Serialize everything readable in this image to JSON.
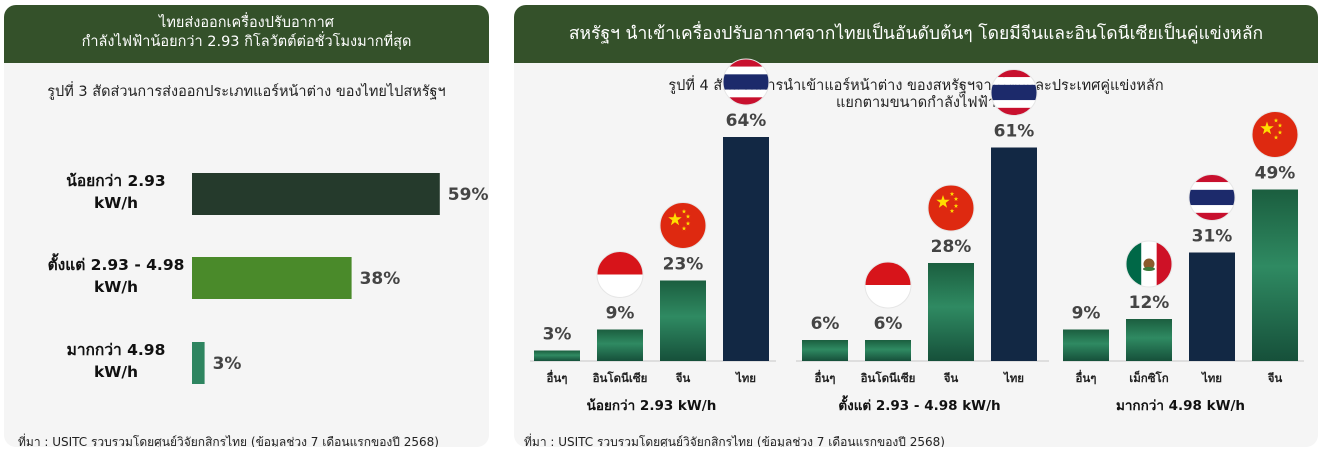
{
  "left": {
    "banner_line1": "ไทยส่งออกเครื่องปรับอากาศ",
    "banner_line2": "กำลังไฟฟ้าน้อยกว่า 2.93 กิโลวัตต์ต่อชั่วโมงมากที่สุด",
    "figure_title": "รูปที่ 3 สัดส่วนการส่งออกประเภทแอร์หน้าต่าง ของไทยไปสหรัฐฯ",
    "source": "ที่มา : USITC รวบรวมโดยศูนย์วิจัยกสิกรไทย (ข้อมูลช่วง 7 เดือนแรกของปี 2568)"
  },
  "right": {
    "banner": "สหรัฐฯ นำเข้าเครื่องปรับอากาศจากไทยเป็นอันดับต้นๆ โดยมีจีนและอินโดนีเซียเป็นคู่แข่งหลัก",
    "figure_title_line1": "รูปที่ 4 สัดส่วนการนำเข้าแอร์หน้าต่าง ของสหรัฐฯจากไทยและประเทศคู่แข่งหลัก",
    "figure_title_line2": "แยกตามขนาดกำลังไฟฟ้า",
    "source": "ที่มา : USITC รวบรวมโดยศูนย์วิจัยกสิกรไทย (ข้อมูลช่วง 7 เดือนแรกของปี 2568)"
  },
  "chart_data": [
    {
      "type": "bar",
      "orientation": "horizontal",
      "title": "รูปที่ 3 สัดส่วนการส่งออกประเภทแอร์หน้าต่าง ของไทยไปสหรัฐฯ",
      "categories": [
        [
          "น้อยกว่า 2.93",
          "kW/h"
        ],
        [
          "ตั้งแต่ 2.93 - 4.98",
          "kW/h"
        ],
        [
          "มากกว่า 4.98",
          "kW/h"
        ]
      ],
      "values": [
        59,
        38,
        3
      ],
      "value_labels": [
        "59%",
        "38%",
        "3%"
      ],
      "colors": [
        "#253a2c",
        "#4a8a2a",
        "#2e8560"
      ],
      "xlim": [
        0,
        100
      ],
      "grid": false
    },
    {
      "type": "bar",
      "title": "รูปที่ 4 สัดส่วนการนำเข้าแอร์หน้าต่าง ของสหรัฐฯจากไทยและประเทศคู่แข่งหลัก แยกตามขนาดกำลังไฟฟ้า",
      "ylim": [
        0,
        70
      ],
      "grid": false,
      "groups": [
        {
          "name": "น้อยกว่า 2.93 kW/h",
          "categories": [
            "อื่นๆ",
            "อินโดนีเซีย",
            "จีน",
            "ไทย"
          ],
          "values": [
            3,
            9,
            23,
            64
          ],
          "value_labels": [
            "3%",
            "9%",
            "23%",
            "64%"
          ],
          "flags": [
            "",
            "indonesia-flag-icon",
            "china-flag-icon",
            "thailand-flag-icon"
          ]
        },
        {
          "name": "ตั้งแต่ 2.93 - 4.98 kW/h",
          "categories": [
            "อื่นๆ",
            "อินโดนีเซีย",
            "จีน",
            "ไทย"
          ],
          "values": [
            6,
            6,
            28,
            61
          ],
          "value_labels": [
            "6%",
            "6%",
            "28%",
            "61%"
          ],
          "flags": [
            "",
            "indonesia-flag-icon",
            "china-flag-icon",
            "thailand-flag-icon"
          ]
        },
        {
          "name": "มากกว่า 4.98 kW/h",
          "categories": [
            "อื่นๆ",
            "เม็กซิโก",
            "ไทย",
            "จีน"
          ],
          "values": [
            9,
            12,
            31,
            49
          ],
          "value_labels": [
            "9%",
            "12%",
            "31%",
            "49%"
          ],
          "flags": [
            "",
            "mexico-flag-icon",
            "thailand-flag-icon",
            "china-flag-icon"
          ]
        }
      ],
      "colors": {
        "thailand": "#122844",
        "others": "#1e6b48"
      }
    }
  ]
}
